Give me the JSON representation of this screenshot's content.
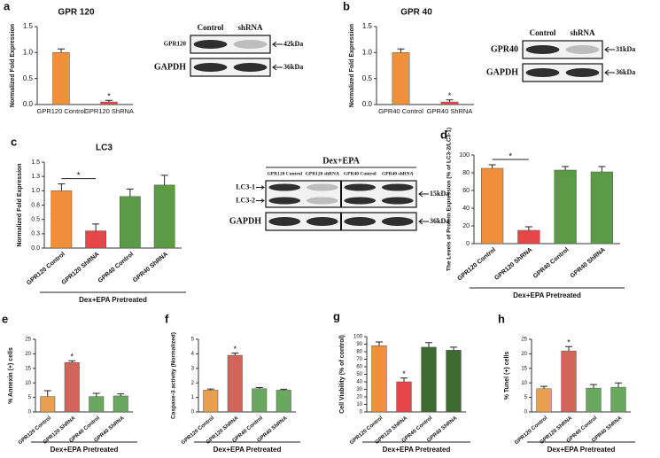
{
  "chart_data": [
    {
      "type": "bar",
      "panel": "a",
      "title": "GPR 120",
      "ylabel": "Normalized Fold Expression",
      "categories": [
        "GPR120 Control",
        "GPR120 ShRNA"
      ],
      "values": [
        1.0,
        0.05
      ],
      "errors": [
        0.07,
        0.03
      ],
      "colors": [
        "#f0903a",
        "#e8474a"
      ],
      "ylim": [
        0,
        1.5
      ],
      "yticks": [
        {
          "value": 0,
          "label": "0.0"
        },
        {
          "value": 0.5,
          "label": "0.5"
        },
        {
          "value": 1,
          "label": "1.0"
        },
        {
          "value": 1.5,
          "label": "1.5"
        }
      ],
      "annotation": "*",
      "blot": {
        "columns": [
          "Control",
          "shRNA"
        ],
        "rows": [
          "GPR120",
          "GAPDH"
        ],
        "sizes": [
          "42kDa",
          "36kDa"
        ]
      }
    },
    {
      "type": "bar",
      "panel": "b",
      "title": "GPR 40",
      "ylabel": "Normalized Fold Expression",
      "categories": [
        "GPR40 Control",
        "GPR40 ShRNA"
      ],
      "values": [
        1.0,
        0.05
      ],
      "errors": [
        0.07,
        0.04
      ],
      "colors": [
        "#f0903a",
        "#e8474a"
      ],
      "ylim": [
        0,
        1.5
      ],
      "yticks": [
        {
          "value": 0,
          "label": "0.0"
        },
        {
          "value": 0.5,
          "label": "0.5"
        },
        {
          "value": 1,
          "label": "1.0"
        },
        {
          "value": 1.5,
          "label": "1.5"
        }
      ],
      "annotation": "*",
      "blot": {
        "columns": [
          "Control",
          "shRNA"
        ],
        "rows": [
          "GPR40",
          "GAPDH"
        ],
        "sizes": [
          "31kDa",
          "36kDa"
        ]
      }
    },
    {
      "type": "bar",
      "panel": "c",
      "title": "LC3",
      "ylabel": "Normalized Fold Expression",
      "categories": [
        "GPR120 Control",
        "GPR120 ShRNA",
        "GPR40 Control",
        "GPR40 ShRNA"
      ],
      "values": [
        1.0,
        0.3,
        0.9,
        1.1
      ],
      "errors": [
        0.12,
        0.12,
        0.13,
        0.17
      ],
      "colors": [
        "#f0903a",
        "#e8474a",
        "#5b9a47",
        "#5b9a47"
      ],
      "ylim": [
        0,
        1.5
      ],
      "yticks": [
        {
          "value": 0,
          "label": "0.0"
        },
        {
          "value": 0.25,
          "label": "0.3"
        },
        {
          "value": 0.5,
          "label": "0.5"
        },
        {
          "value": 0.75,
          "label": "0.8"
        },
        {
          "value": 1,
          "label": "1.0"
        },
        {
          "value": 1.25,
          "label": "1.3"
        },
        {
          "value": 1.5,
          "label": "1.5"
        }
      ],
      "annotation": "*",
      "annotation_bracket": true,
      "group_label": "Dex+EPA Pretreated"
    },
    {
      "type": "bar",
      "panel": "d",
      "ylabel": "The Levels of Protein Expression (% of LC3-2/LC3-1)",
      "categories": [
        "GPR120 Control",
        "GPR120 ShRNA",
        "GPR40 Control",
        "GPR40 ShRNA"
      ],
      "values": [
        85,
        15,
        83,
        81
      ],
      "errors": [
        4,
        4,
        4,
        6
      ],
      "colors": [
        "#f0903a",
        "#e8474a",
        "#5b9a47",
        "#5b9a47"
      ],
      "ylim": [
        0,
        100
      ],
      "yticks": [
        0,
        20,
        40,
        60,
        80,
        100
      ],
      "annotation": "*",
      "annotation_bracket": true,
      "group_label": "Dex+EPA Pretreated",
      "blot": {
        "header": "Dex+EPA",
        "columns": [
          "GPR120 Control",
          "GPR120 shRNA",
          "GPR40 Control",
          "GPR40 shRNA"
        ],
        "rows": [
          "LC3-1",
          "LC3-2",
          "GAPDH"
        ],
        "sizes": [
          "15kDa",
          "36kDa"
        ]
      }
    },
    {
      "type": "bar",
      "panel": "e",
      "ylabel": "% Annexin (+) cells",
      "categories": [
        "GPR120 Control",
        "GPR120 ShRNA",
        "GPR40 Control",
        "GPR40 ShRNA"
      ],
      "values": [
        5.3,
        17,
        5.3,
        5.5
      ],
      "errors": [
        2,
        0.6,
        1.1,
        0.7
      ],
      "colors": [
        "#e8a050",
        "#d2655a",
        "#6aa860",
        "#6aa860"
      ],
      "ylim": [
        0,
        25
      ],
      "yticks": [
        0,
        5,
        10,
        15,
        20,
        25
      ],
      "annotation": "*",
      "group_label": "Dex+EPA Pretreated"
    },
    {
      "type": "bar",
      "panel": "f",
      "ylabel": "Caspase-3 activity (Normalized)",
      "categories": [
        "GPR120 Control",
        "GPR120 ShRNA",
        "GPR40 Control",
        "GPR40 ShRNA"
      ],
      "values": [
        1.5,
        3.9,
        1.6,
        1.5
      ],
      "errors": [
        0.08,
        0.15,
        0.08,
        0.06
      ],
      "colors": [
        "#e8a050",
        "#d2655a",
        "#6aa860",
        "#6aa860"
      ],
      "ylim": [
        0,
        5
      ],
      "yticks": [
        0,
        1,
        2,
        3,
        4,
        5
      ],
      "annotation": "*",
      "group_label": "Dex+EPA Pretreated"
    },
    {
      "type": "bar",
      "panel": "g",
      "ylabel": "Cell Viability (% of control)",
      "categories": [
        "GPR120 Control",
        "GPR120 ShRNA",
        "GPR40 Control",
        "GPR40 ShRNA"
      ],
      "values": [
        88,
        40,
        86,
        82
      ],
      "errors": [
        5,
        5,
        6,
        4
      ],
      "colors": [
        "#f0903a",
        "#e8474a",
        "#3d6b32",
        "#3d6b32"
      ],
      "ylim": [
        0,
        100
      ],
      "yticks": [
        0,
        10,
        20,
        30,
        40,
        50,
        60,
        70,
        80,
        90,
        100
      ],
      "annotation": "*",
      "group_label": "Dex+EPA Pretreated"
    },
    {
      "type": "bar",
      "panel": "h",
      "ylabel": "% Tunel (+) cells",
      "categories": [
        "GPR120 Control",
        "GPR120 ShRNA",
        "GPR40 Control",
        "GPR40 ShRNA"
      ],
      "values": [
        8,
        21,
        8.2,
        8.5
      ],
      "errors": [
        0.8,
        1.5,
        1.2,
        1.5
      ],
      "colors": [
        "#e8a050",
        "#d2655a",
        "#6aa860",
        "#6aa860"
      ],
      "ylim": [
        0,
        25
      ],
      "yticks": [
        0,
        5,
        10,
        15,
        20,
        25
      ],
      "annotation": "*",
      "group_label": "Dex+EPA Pretreated"
    }
  ]
}
